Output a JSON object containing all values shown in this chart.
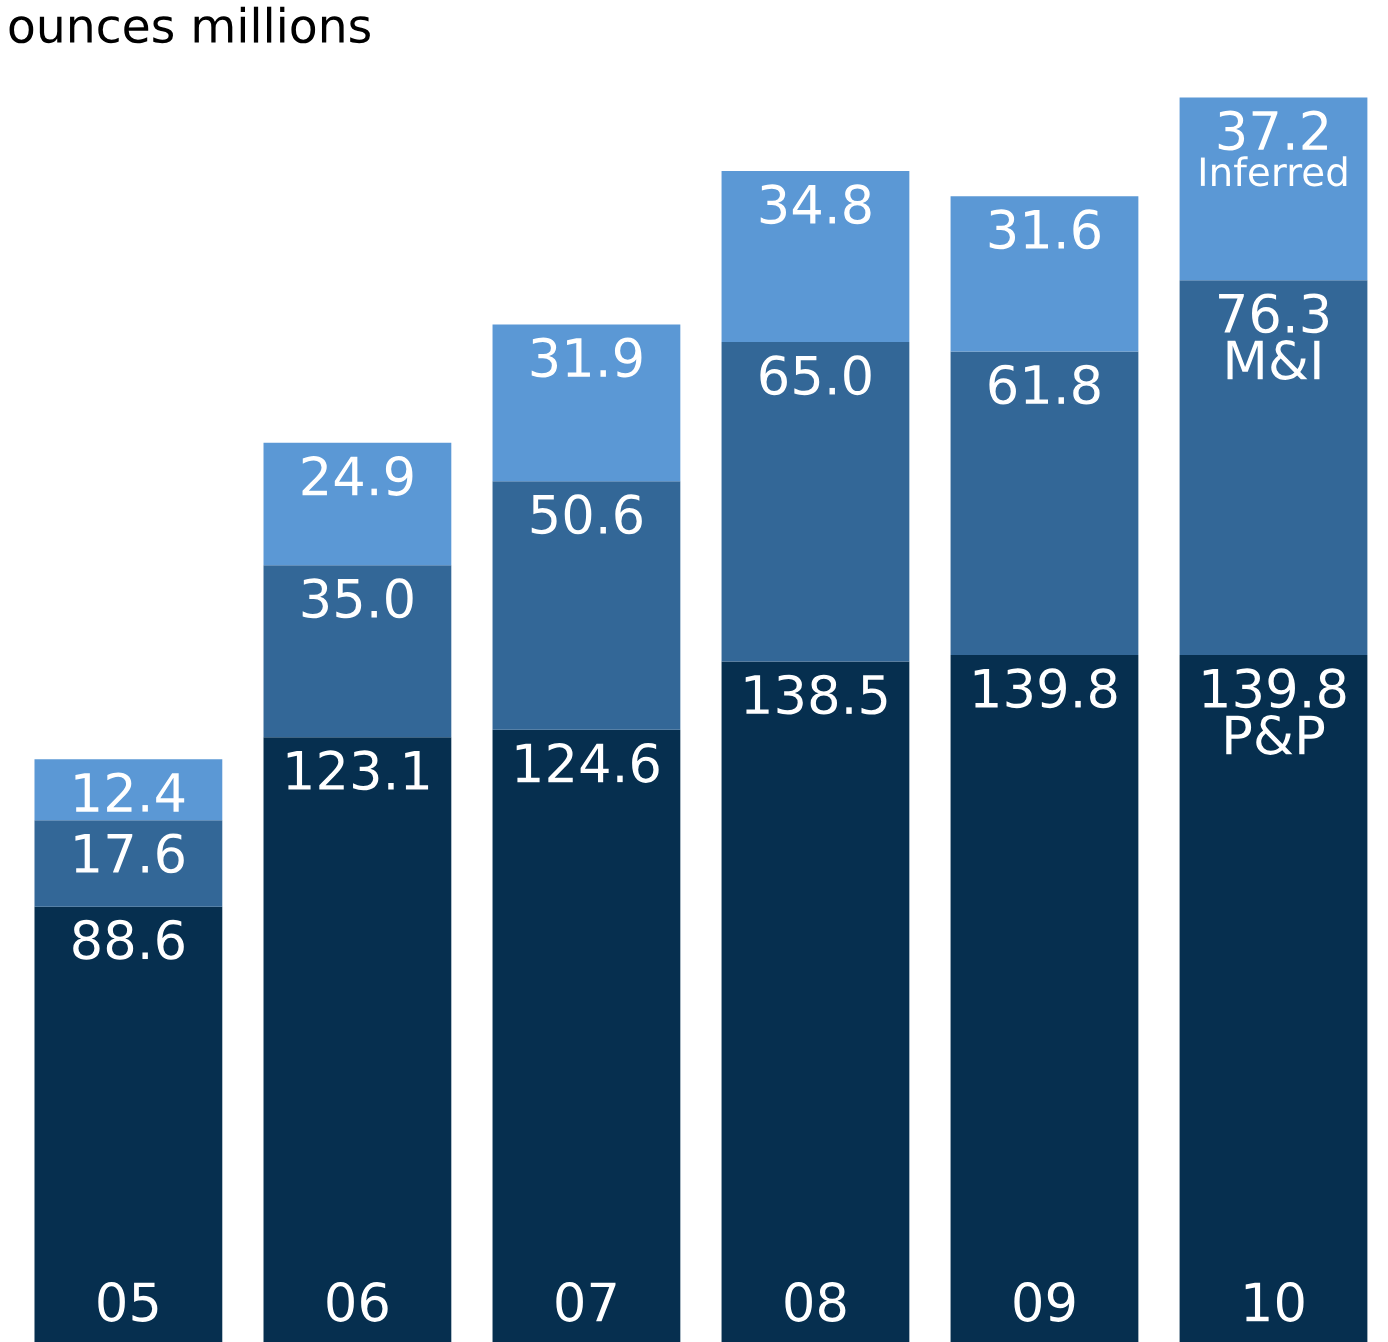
{
  "chart_data": {
    "type": "bar",
    "title": "ounces millions",
    "stacked": true,
    "legend": false,
    "ylim": [
      0,
      254
    ],
    "categories": [
      "05",
      "06",
      "07",
      "08",
      "09",
      "10"
    ],
    "series": [
      {
        "name": "P&P",
        "color": "#062f4f",
        "values": [
          88.6,
          123.1,
          124.6,
          138.5,
          139.8,
          139.8
        ],
        "value_labels": [
          "88.6",
          "123.1",
          "124.6",
          "138.5",
          "139.8",
          "139.8"
        ]
      },
      {
        "name": "M&I",
        "color": "#336797",
        "values": [
          17.6,
          35.0,
          50.6,
          65.0,
          61.8,
          76.3
        ],
        "value_labels": [
          "17.6",
          "35.0",
          "50.6",
          "65.0",
          "61.8",
          "76.3"
        ]
      },
      {
        "name": "Inferred",
        "color": "#5b98d5",
        "values": [
          12.4,
          24.9,
          31.9,
          34.8,
          31.6,
          37.2
        ],
        "value_labels": [
          "12.4",
          "24.9",
          "31.9",
          "34.8",
          "31.6",
          "37.2"
        ]
      }
    ]
  }
}
